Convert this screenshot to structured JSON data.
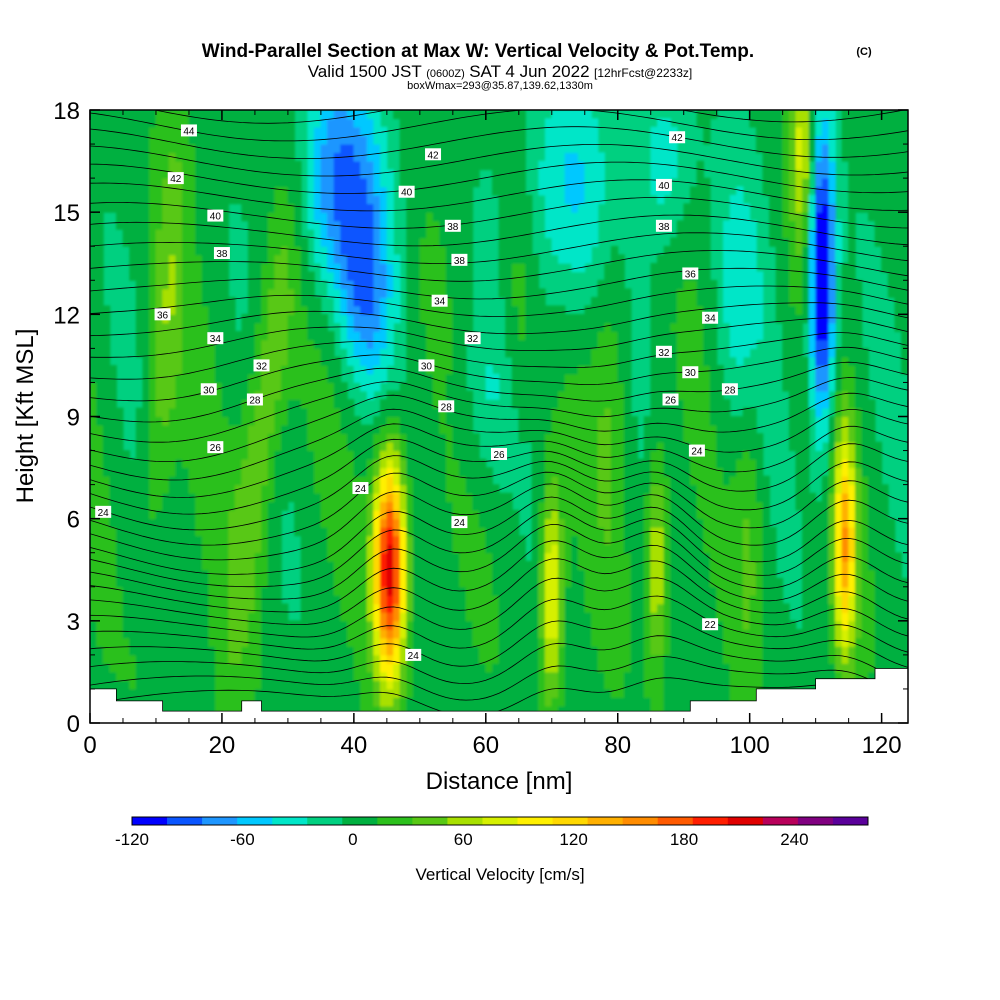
{
  "chart_data": {
    "type": "heatmap",
    "title": "Wind-Parallel Section at Max W: Vertical Velocity & Pot.Temp.",
    "title_mark": "(C)",
    "subtitle": {
      "part1": "Valid 1500 JST",
      "part2": "(0600Z)",
      "part3": "SAT 4 Jun 2022",
      "part4": "[12hrFcst@2233z]"
    },
    "subtitle2": "boxWmax=293@35.87,139.62,1330m",
    "xlabel": "Distance [nm]",
    "ylabel": "Height [Kft MSL]",
    "xlim": [
      0,
      124
    ],
    "ylim": [
      0,
      18
    ],
    "x_ticks": [
      "0",
      "20",
      "40",
      "60",
      "80",
      "100",
      "120"
    ],
    "y_ticks": [
      "0",
      "3",
      "6",
      "9",
      "12",
      "15",
      "18"
    ],
    "colorbar": {
      "label": "Vertical Velocity [cm/s]",
      "tick_labels": [
        "-120",
        "-60",
        "0",
        "60",
        "120",
        "180",
        "240"
      ],
      "tick_values": [
        -120,
        -60,
        0,
        60,
        120,
        180,
        240
      ],
      "range": [
        -120,
        280
      ],
      "colors": [
        "#0000ff",
        "#0a55ff",
        "#1e96ff",
        "#00c8ff",
        "#00e6c8",
        "#00d080",
        "#00b040",
        "#2cc01c",
        "#58c814",
        "#a8e000",
        "#d6f000",
        "#fff000",
        "#ffd800",
        "#ffb000",
        "#ff8c00",
        "#ff5a00",
        "#ff1e00",
        "#e00000",
        "#b8005a",
        "#800080",
        "#5a009a"
      ]
    },
    "updrafts": [
      {
        "x": 45.5,
        "z_center": 4.6,
        "peak": 220
      },
      {
        "x": 70.0,
        "z_center": 3.8,
        "peak": 95
      },
      {
        "x": 86.0,
        "z_center": 4.8,
        "peak": 75
      },
      {
        "x": 114.5,
        "z_center": 5.2,
        "peak": 130
      },
      {
        "x": 108.0,
        "z_center": 17.0,
        "peak": 70
      }
    ],
    "theta_labels": [
      {
        "text": "44",
        "x": 15,
        "z": 17.4
      },
      {
        "text": "42",
        "x": 13,
        "z": 16.0
      },
      {
        "text": "42",
        "x": 52,
        "z": 16.7
      },
      {
        "text": "42",
        "x": 89,
        "z": 17.2
      },
      {
        "text": "40",
        "x": 19,
        "z": 14.9
      },
      {
        "text": "40",
        "x": 48,
        "z": 15.6
      },
      {
        "text": "40",
        "x": 87,
        "z": 15.8
      },
      {
        "text": "38",
        "x": 20,
        "z": 13.8
      },
      {
        "text": "38",
        "x": 55,
        "z": 14.6
      },
      {
        "text": "38",
        "x": 87,
        "z": 14.6
      },
      {
        "text": "38",
        "x": 56,
        "z": 13.6
      },
      {
        "text": "36",
        "x": 11,
        "z": 12.0
      },
      {
        "text": "36",
        "x": 91,
        "z": 13.2
      },
      {
        "text": "34",
        "x": 19,
        "z": 11.3
      },
      {
        "text": "34",
        "x": 53,
        "z": 12.4
      },
      {
        "text": "34",
        "x": 94,
        "z": 11.9
      },
      {
        "text": "32",
        "x": 26,
        "z": 10.5
      },
      {
        "text": "32",
        "x": 58,
        "z": 11.3
      },
      {
        "text": "32",
        "x": 87,
        "z": 10.9
      },
      {
        "text": "30",
        "x": 18,
        "z": 9.8
      },
      {
        "text": "30",
        "x": 51,
        "z": 10.5
      },
      {
        "text": "30",
        "x": 91,
        "z": 10.3
      },
      {
        "text": "28",
        "x": 25,
        "z": 9.5
      },
      {
        "text": "28",
        "x": 54,
        "z": 9.3
      },
      {
        "text": "28",
        "x": 97,
        "z": 9.8
      },
      {
        "text": "26",
        "x": 19,
        "z": 8.1
      },
      {
        "text": "26",
        "x": 62,
        "z": 7.9
      },
      {
        "text": "26",
        "x": 88,
        "z": 9.5
      },
      {
        "text": "24",
        "x": 41,
        "z": 6.9
      },
      {
        "text": "24",
        "x": 56,
        "z": 5.9
      },
      {
        "text": "24",
        "x": 92,
        "z": 8.0
      },
      {
        "text": "24",
        "x": 2,
        "z": 6.2
      },
      {
        "text": "24",
        "x": 49,
        "z": 2.0
      },
      {
        "text": "22",
        "x": 94,
        "z": 2.9
      }
    ],
    "terrain": [
      [
        0,
        1.0
      ],
      [
        4,
        1.0
      ],
      [
        4,
        0.65
      ],
      [
        11,
        0.65
      ],
      [
        11,
        0.35
      ],
      [
        23,
        0.35
      ],
      [
        23,
        0.65
      ],
      [
        26,
        0.65
      ],
      [
        26,
        0.35
      ],
      [
        91,
        0.35
      ],
      [
        91,
        0.65
      ],
      [
        101,
        0.65
      ],
      [
        101,
        1.0
      ],
      [
        110,
        1.0
      ],
      [
        110,
        1.3
      ],
      [
        119,
        1.3
      ],
      [
        119,
        1.6
      ],
      [
        124,
        1.6
      ]
    ]
  }
}
